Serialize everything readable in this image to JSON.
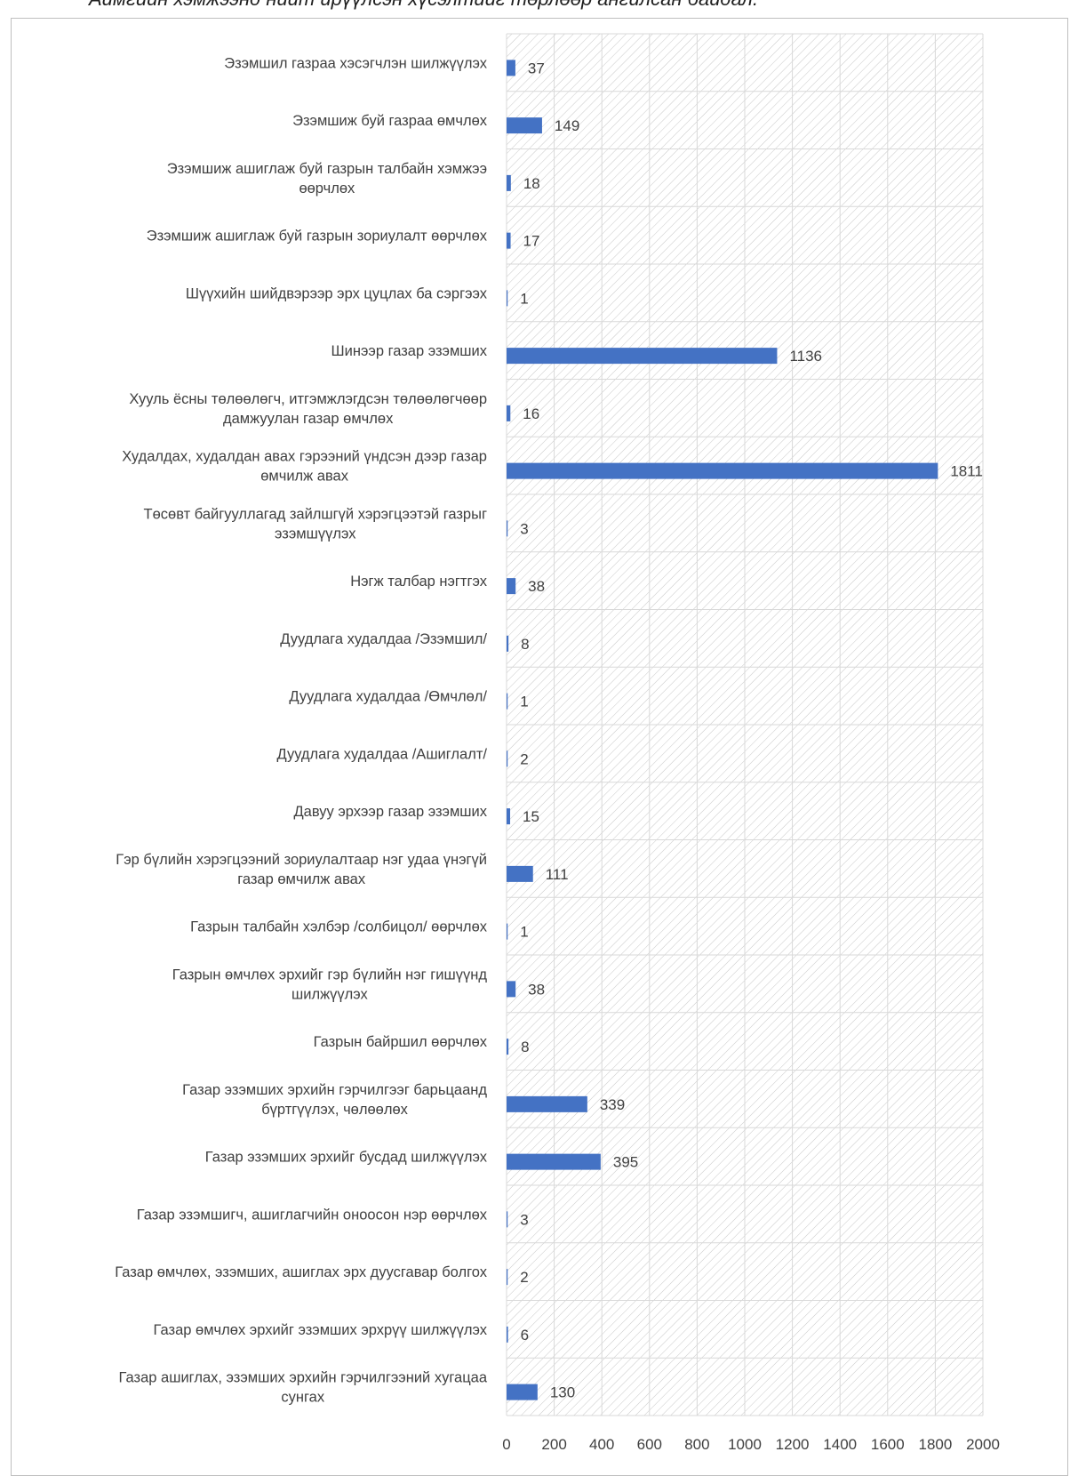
{
  "chart_data": {
    "type": "bar",
    "orientation": "horizontal",
    "title": "Аймгийн хэмжээнд нийт ирүүлсэн хүсэлтийг төрлөөр ангилсан байдал.",
    "xlim": [
      0,
      2000
    ],
    "x_ticks": [
      "0",
      "200",
      "400",
      "600",
      "800",
      "1000",
      "1200",
      "1400",
      "1600",
      "1800",
      "2000"
    ],
    "grid": true,
    "legend": "none",
    "bar_color": "#4472C4",
    "categories": [
      "Эзэмшил газраа хэсэгчлэн шилжүүлэх",
      "Эзэмшиж буй газраа өмчлөх",
      "Эзэмшиж ашиглаж буй газрын талбайн хэмжээ өөрчлөх",
      "Эзэмшиж ашиглаж буй газрын зориулалт өөрчлөх",
      "Шүүхийн шийдвэрээр эрх цуцлах ба сэргээх",
      "Шинээр газар эзэмших",
      "Хууль ёсны төлөөлөгч, итгэмжлэгдсэн төлөөлөгчөөр дамжуулан газар өмчлөх",
      "Худалдах, худалдан авах гэрээний үндсэн дээр газар өмчилж авах",
      "Төсөвт байгууллагад зайлшгүй хэрэгцээтэй газрыг эзэмшүүлэх",
      "Нэгж талбар нэгтгэх",
      "Дуудлага худалдаа /Эзэмшил/",
      "Дуудлага худалдаа /Өмчлөл/",
      "Дуудлага худалдаа /Ашиглалт/",
      "Давуу эрхээр газар эзэмших",
      "Гэр бүлийн хэрэгцээний зориулалтаар нэг удаа үнэгүй газар өмчилж авах",
      "Газрын талбайн хэлбэр /солбицол/ өөрчлөх",
      "Газрын өмчлөх эрхийг гэр бүлийн нэг гишүүнд шилжүүлэх",
      "Газрын байршил өөрчлөх",
      "Газар эзэмших эрхийн гэрчилгээг барьцаанд бүртгүүлэх, чөлөөлөх",
      "Газар эзэмших эрхийг бусдад шилжүүлэх",
      "Газар эзэмшигч, ашиглагчийн оноосон нэр өөрчлөх",
      "Газар өмчлөх, эзэмших, ашиглах эрх дуусгавар болгох",
      "Газар өмчлөх эрхийг эзэмших эрхрүү шилжүүлэх",
      "Газар ашиглах, эзэмших эрхийн гэрчилгээний хугацаа сунгах"
    ],
    "category_lines": [
      [
        "Эзэмшил газраа хэсэгчлэн шилжүүлэх"
      ],
      [
        "Эзэмшиж буй газраа өмчлөх"
      ],
      [
        "Эзэмшиж ашиглаж буй газрын талбайн хэмжээ",
        "өөрчлөх"
      ],
      [
        "Эзэмшиж ашиглаж буй газрын зориулалт өөрчлөх"
      ],
      [
        "Шүүхийн шийдвэрээр эрх цуцлах ба сэргээх"
      ],
      [
        "Шинээр газар эзэмших"
      ],
      [
        "Хууль ёсны төлөөлөгч, итгэмжлэгдсэн төлөөлөгчөөр",
        "дамжуулан газар өмчлөх"
      ],
      [
        "Худалдах, худалдан авах гэрээний үндсэн дээр газар",
        "өмчилж авах"
      ],
      [
        "Төсөвт байгууллагад зайлшгүй хэрэгцээтэй газрыг",
        "эзэмшүүлэх"
      ],
      [
        "Нэгж талбар нэгтгэх"
      ],
      [
        "Дуудлага худалдаа /Эзэмшил/"
      ],
      [
        "Дуудлага худалдаа /Өмчлөл/"
      ],
      [
        "Дуудлага худалдаа /Ашиглалт/"
      ],
      [
        "Давуу эрхээр газар эзэмших"
      ],
      [
        "Гэр бүлийн хэрэгцээний зориулалтаар нэг удаа үнэгүй",
        "газар өмчилж авах"
      ],
      [
        "Газрын талбайн хэлбэр /солбицол/ өөрчлөх"
      ],
      [
        "Газрын өмчлөх эрхийг гэр бүлийн нэг гишүүнд",
        "шилжүүлэх"
      ],
      [
        "Газрын байршил өөрчлөх"
      ],
      [
        "Газар эзэмших эрхийн гэрчилгээг барьцаанд",
        "бүртгүүлэх, чөлөөлөх"
      ],
      [
        "Газар эзэмших эрхийг бусдад шилжүүлэх"
      ],
      [
        "Газар эзэмшигч, ашиглагчийн оноосон нэр өөрчлөх"
      ],
      [
        "Газар өмчлөх, эзэмших, ашиглах эрх дуусгавар болгох"
      ],
      [
        "Газар өмчлөх эрхийг эзэмших эрхрүү шилжүүлэх"
      ],
      [
        "Газар ашиглах, эзэмших эрхийн гэрчилгээний хугацаа",
        "сунгах"
      ]
    ],
    "values": [
      37,
      149,
      18,
      17,
      1,
      1136,
      16,
      1811,
      3,
      38,
      8,
      1,
      2,
      15,
      111,
      1,
      38,
      8,
      339,
      395,
      3,
      2,
      6,
      130
    ]
  }
}
